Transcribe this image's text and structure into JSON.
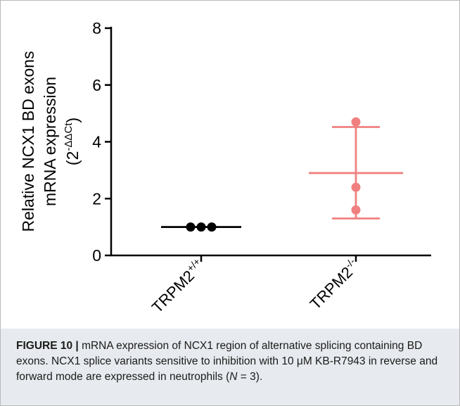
{
  "chart_data": {
    "type": "scatter",
    "title": "",
    "ylabel": {
      "line1": "Relative NCX1 BD exons",
      "line2": "mRNA expression",
      "line3_base": "(2",
      "line3_sup": "-ΔΔCt",
      "line3_end": ")"
    },
    "ylim": [
      0,
      8
    ],
    "yticks": [
      0,
      2,
      4,
      6,
      8
    ],
    "categories": [
      {
        "base": "TRPM2",
        "sup": "+/+"
      },
      {
        "base": "TRPM2",
        "sup": "-/-"
      }
    ],
    "series": [
      {
        "category_index": 0,
        "points": [
          1.0,
          1.0,
          1.0
        ],
        "mean": 1.0,
        "sd_low": 1.0,
        "sd_high": 1.0,
        "color": "#000000"
      },
      {
        "category_index": 1,
        "points": [
          4.7,
          2.4,
          1.6
        ],
        "mean": 2.9,
        "sd_low": 1.3,
        "sd_high": 4.52,
        "color": "#f08080"
      }
    ],
    "grid": false
  },
  "caption": {
    "label": "FIGURE 10",
    "separator": "|",
    "text": " mRNA expression of NCX1 region of alternative splicing containing BD exons. NCX1 splice variants sensitive to inhibition with 10 μM KB-R7943 in reverse and forward mode are expressed in neutrophils (",
    "n_var": "N",
    "n_text": " = 3)."
  }
}
